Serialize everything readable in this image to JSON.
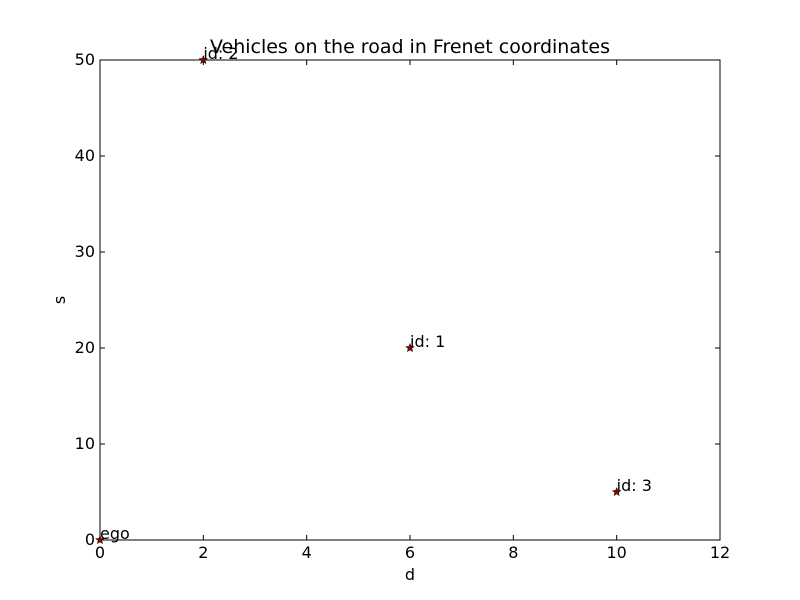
{
  "chart_data": {
    "type": "scatter",
    "title": "Vehicles on the road in Frenet coordinates",
    "xlabel": "d",
    "ylabel": "s",
    "xlim": [
      0,
      12
    ],
    "ylim": [
      0,
      50
    ],
    "xticks": [
      0,
      2,
      4,
      6,
      8,
      10,
      12
    ],
    "yticks": [
      0,
      10,
      20,
      30,
      40,
      50
    ],
    "grid": false,
    "marker": "star",
    "marker_color": "#8b0000",
    "points": [
      {
        "d": 0,
        "s": 0,
        "label": "ego"
      },
      {
        "d": 2,
        "s": 50,
        "label": "id: 2"
      },
      {
        "d": 6,
        "s": 20,
        "label": "id: 1"
      },
      {
        "d": 10,
        "s": 5,
        "label": "id: 3"
      }
    ]
  }
}
